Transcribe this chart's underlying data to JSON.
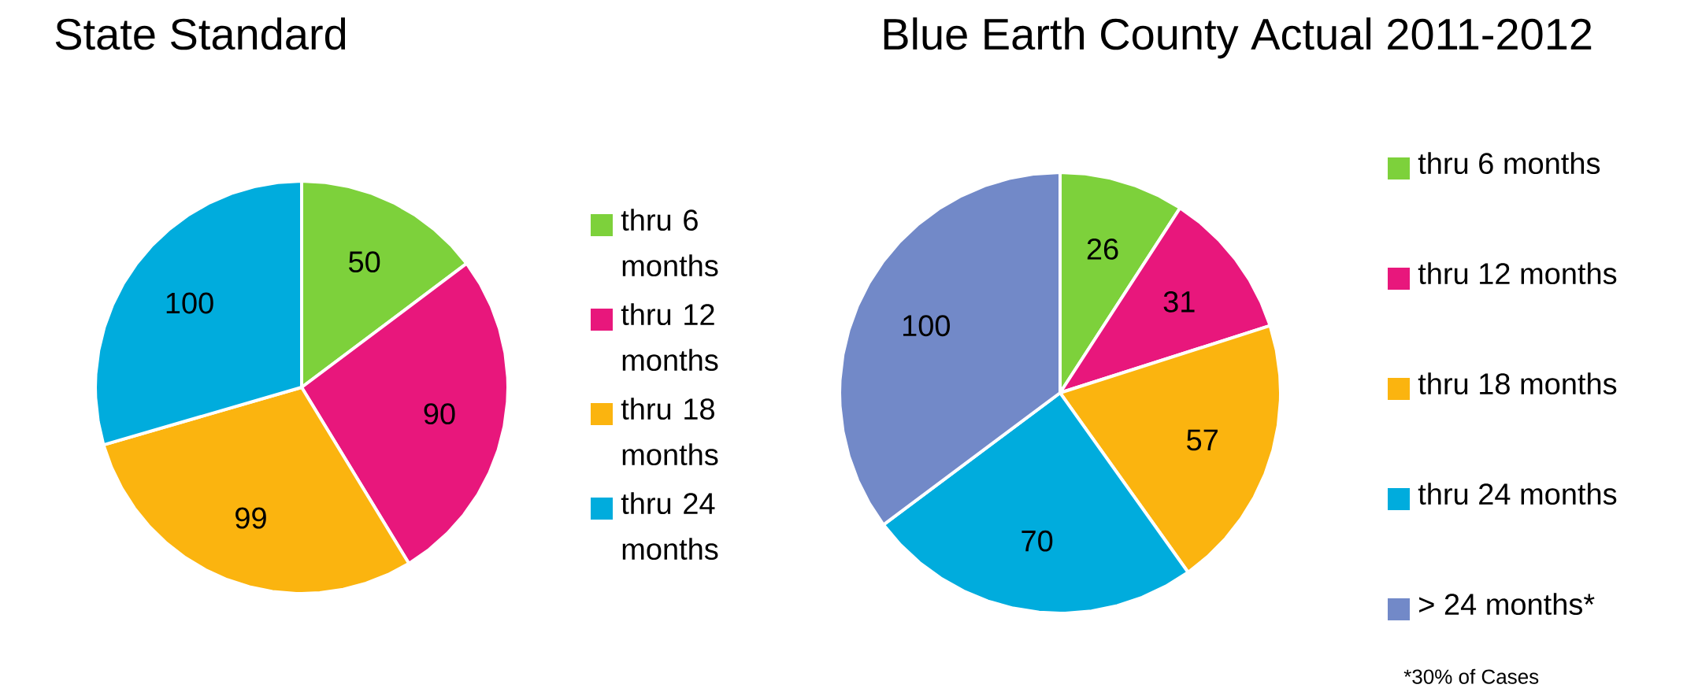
{
  "chart_data": [
    {
      "type": "pie",
      "title": "State Standard",
      "categories": [
        "thru 6 months",
        "thru 12 months",
        "thru 18 months",
        "thru 24 months"
      ],
      "values": [
        50,
        90,
        99,
        100
      ],
      "colors": [
        "#7dd13b",
        "#e8177c",
        "#fbb40f",
        "#00acdd"
      ],
      "data_labels": true,
      "legend": "right"
    },
    {
      "type": "pie",
      "title": "Blue Earth County Actual 2011-2012",
      "categories": [
        "thru 6 months",
        "thru 12 months",
        "thru 18 months",
        "thru 24 months",
        "> 24 months*"
      ],
      "values": [
        26,
        31,
        57,
        70,
        100
      ],
      "colors": [
        "#7dd13b",
        "#e8177c",
        "#fbb40f",
        "#00acdd",
        "#7289c8"
      ],
      "data_labels": true,
      "legend": "right",
      "annotations": [
        "*30% of Cases"
      ]
    }
  ]
}
